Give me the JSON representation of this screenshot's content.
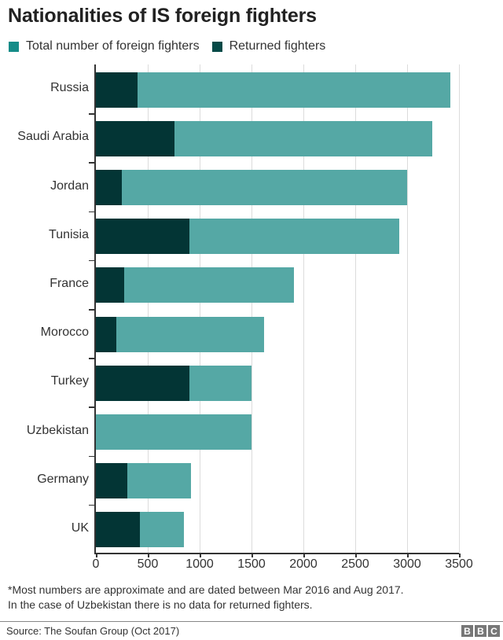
{
  "title": "Nationalities of IS foreign fighters",
  "legend": [
    {
      "label": "Total number of foreign fighters",
      "color": "#168c88"
    },
    {
      "label": "Returned fighters",
      "color": "#064a47"
    }
  ],
  "colors": {
    "total_bar": "#55a8a5",
    "returned_bar": "#033535"
  },
  "note_line1": "*Most numbers are approximate and are dated between Mar 2016 and Aug 2017.",
  "note_line2": "In the case of Uzbekistan there is no data for returned fighters.",
  "source": "Source: The Soufan Group (Oct 2017)",
  "logo": [
    "B",
    "B",
    "C"
  ],
  "chart_data": {
    "type": "bar",
    "orientation": "horizontal",
    "title": "Nationalities of IS foreign fighters",
    "xlabel": "",
    "ylabel": "",
    "xlim": [
      0,
      3500
    ],
    "xticks": [
      "0",
      "500",
      "1000",
      "1500",
      "2000",
      "2500",
      "3000",
      "3500"
    ],
    "grid": true,
    "legend_position": "top-left",
    "categories": [
      "Russia",
      "Saudi Arabia",
      "Jordan",
      "Tunisia",
      "France",
      "Morocco",
      "Turkey",
      "Uzbekistan",
      "Germany",
      "UK"
    ],
    "series": [
      {
        "name": "Total number of foreign fighters",
        "values": [
          3417,
          3244,
          3000,
          2926,
          1910,
          1623,
          1500,
          1500,
          915,
          850
        ]
      },
      {
        "name": "Returned fighters",
        "values": [
          400,
          760,
          250,
          900,
          271,
          198,
          900,
          null,
          300,
          425
        ]
      }
    ]
  }
}
